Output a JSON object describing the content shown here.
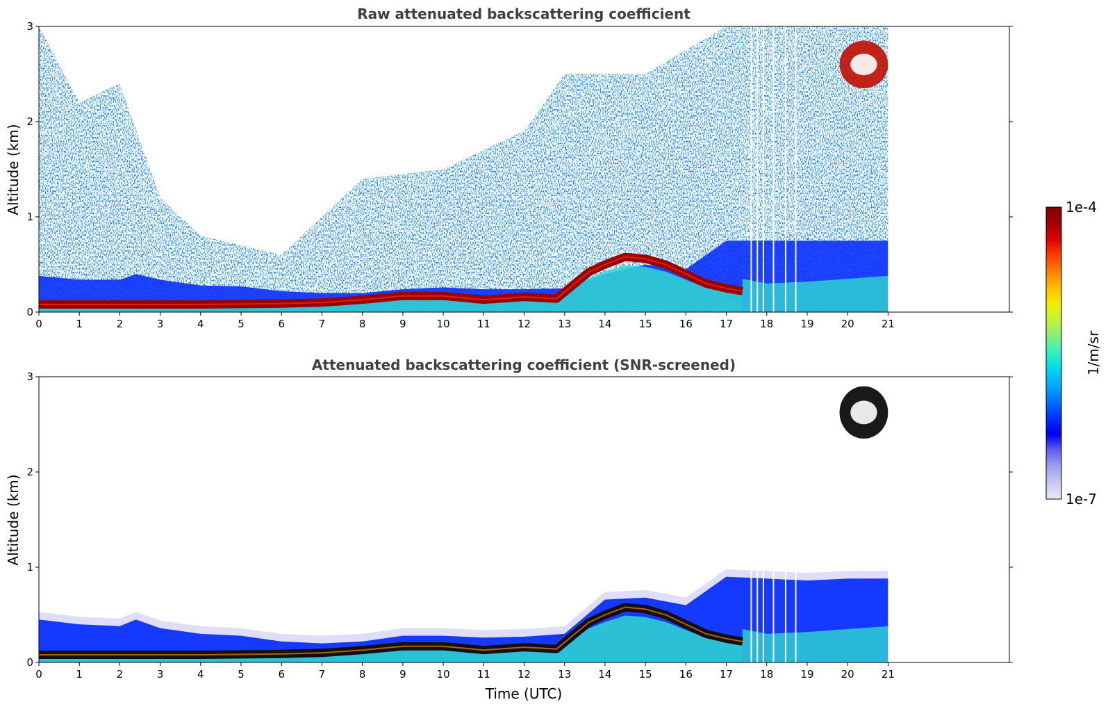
{
  "chart_data": [
    {
      "type": "heatmap",
      "title": "Raw attenuated backscattering coefficient",
      "xlabel": "",
      "ylabel": "Altitude (km)",
      "xlim": [
        0,
        24
      ],
      "ylim": [
        0,
        3
      ],
      "xticks": [
        "0",
        "1",
        "2",
        "3",
        "4",
        "5",
        "6",
        "7",
        "8",
        "9",
        "10",
        "11",
        "12",
        "13",
        "14",
        "15",
        "16",
        "17",
        "18",
        "19",
        "20",
        "21"
      ],
      "yticks": [
        "0",
        "1",
        "2",
        "3"
      ],
      "data_end_time": 21,
      "features": {
        "surface_layer": [
          [
            0,
            0.08
          ],
          [
            2,
            0.08
          ],
          [
            4,
            0.08
          ],
          [
            6,
            0.09
          ],
          [
            7,
            0.1
          ],
          [
            8,
            0.13
          ],
          [
            9,
            0.17
          ],
          [
            10,
            0.17
          ],
          [
            11,
            0.13
          ],
          [
            12,
            0.16
          ],
          [
            12.8,
            0.14
          ],
          [
            13.2,
            0.28
          ],
          [
            13.6,
            0.42
          ],
          [
            14,
            0.5
          ],
          [
            14.5,
            0.58
          ],
          [
            15,
            0.56
          ],
          [
            15.5,
            0.5
          ],
          [
            16,
            0.4
          ],
          [
            16.5,
            0.3
          ],
          [
            17,
            0.25
          ],
          [
            17.4,
            0.22
          ]
        ],
        "boundary_layer_top": [
          [
            0,
            0.38
          ],
          [
            1,
            0.34
          ],
          [
            2,
            0.34
          ],
          [
            2.4,
            0.4
          ],
          [
            3,
            0.34
          ],
          [
            4,
            0.28
          ],
          [
            5,
            0.27
          ],
          [
            6,
            0.22
          ],
          [
            7,
            0.2
          ],
          [
            8,
            0.2
          ],
          [
            9,
            0.24
          ],
          [
            10,
            0.26
          ],
          [
            11,
            0.24
          ],
          [
            12,
            0.24
          ],
          [
            13,
            0.25
          ],
          [
            14,
            0.4
          ],
          [
            15,
            0.5
          ],
          [
            16,
            0.45
          ],
          [
            17,
            0.75
          ],
          [
            18,
            0.75
          ],
          [
            19,
            0.75
          ],
          [
            20,
            0.75
          ],
          [
            21,
            0.75
          ]
        ],
        "aerosol_haze_top": [
          [
            0,
            3
          ],
          [
            1,
            2.2
          ],
          [
            2,
            2.4
          ],
          [
            3,
            1.2
          ],
          [
            4,
            0.8
          ],
          [
            6,
            0.6
          ],
          [
            8,
            1.4
          ],
          [
            10,
            1.5
          ],
          [
            12,
            1.9
          ],
          [
            13,
            2.5
          ],
          [
            15,
            2.5
          ],
          [
            17,
            3
          ],
          [
            21,
            3
          ]
        ],
        "cloud": {
          "t0": 19.8,
          "t1": 21,
          "z0": 2.35,
          "z1": 2.85
        }
      }
    },
    {
      "type": "heatmap",
      "title": "Attenuated backscattering coefficient (SNR-screened)",
      "xlabel": "Time (UTC)",
      "ylabel": "Altitude (km)",
      "xlim": [
        0,
        24
      ],
      "ylim": [
        0,
        3
      ],
      "xticks": [
        "0",
        "1",
        "2",
        "3",
        "4",
        "5",
        "6",
        "7",
        "8",
        "9",
        "10",
        "11",
        "12",
        "13",
        "14",
        "15",
        "16",
        "17",
        "18",
        "19",
        "20",
        "21"
      ],
      "yticks": [
        "0",
        "1",
        "2",
        "3"
      ],
      "data_end_time": 21,
      "features": {
        "surface_layer": [
          [
            0,
            0.08
          ],
          [
            2,
            0.08
          ],
          [
            4,
            0.08
          ],
          [
            6,
            0.09
          ],
          [
            7,
            0.1
          ],
          [
            8,
            0.13
          ],
          [
            9,
            0.17
          ],
          [
            10,
            0.17
          ],
          [
            11,
            0.13
          ],
          [
            12,
            0.16
          ],
          [
            12.8,
            0.14
          ],
          [
            13.2,
            0.28
          ],
          [
            13.6,
            0.42
          ],
          [
            14,
            0.5
          ],
          [
            14.5,
            0.58
          ],
          [
            15,
            0.56
          ],
          [
            15.5,
            0.5
          ],
          [
            16,
            0.4
          ],
          [
            16.5,
            0.3
          ],
          [
            17,
            0.25
          ],
          [
            17.4,
            0.22
          ]
        ],
        "boundary_layer_top": [
          [
            0,
            0.45
          ],
          [
            1,
            0.4
          ],
          [
            2,
            0.38
          ],
          [
            2.4,
            0.45
          ],
          [
            3,
            0.36
          ],
          [
            4,
            0.3
          ],
          [
            5,
            0.28
          ],
          [
            6,
            0.22
          ],
          [
            7,
            0.2
          ],
          [
            8,
            0.22
          ],
          [
            9,
            0.28
          ],
          [
            10,
            0.28
          ],
          [
            11,
            0.26
          ],
          [
            12,
            0.27
          ],
          [
            13,
            0.3
          ],
          [
            14,
            0.66
          ],
          [
            15,
            0.68
          ],
          [
            16,
            0.6
          ],
          [
            17,
            0.9
          ],
          [
            18,
            0.88
          ],
          [
            19,
            0.86
          ],
          [
            20,
            0.88
          ],
          [
            21,
            0.88
          ]
        ],
        "cloud": {
          "t0": 19.8,
          "t1": 21,
          "z0": 2.35,
          "z1": 2.9
        }
      }
    }
  ],
  "colorbar": {
    "label": "1/m/sr",
    "max_label": "1e-4",
    "min_label": "1e-7",
    "colors": [
      "#e8e8f8",
      "#c8c8f0",
      "#a0a0f0",
      "#6060f0",
      "#0000f0",
      "#0030ff",
      "#0070ff",
      "#00a8ff",
      "#00d8f0",
      "#30f0c0",
      "#80f080",
      "#c0f040",
      "#f0f000",
      "#ffc000",
      "#ff8000",
      "#ff4000",
      "#e00000",
      "#a00000",
      "#800000"
    ]
  }
}
